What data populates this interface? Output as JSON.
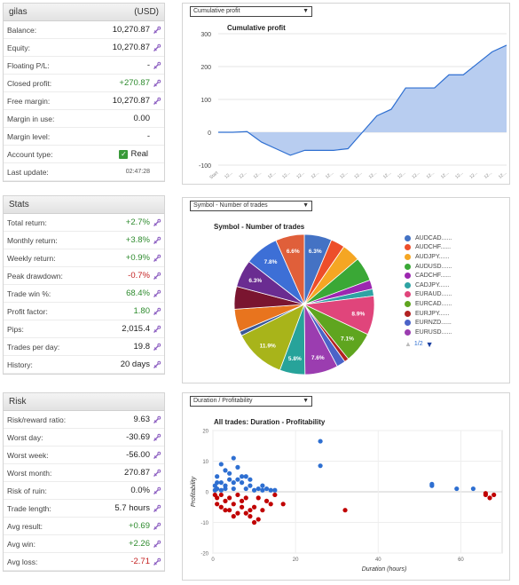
{
  "account": {
    "name": "gilas",
    "currency": "(USD)",
    "rows": [
      {
        "label": "Balance:",
        "value": "10,270.87",
        "tone": ""
      },
      {
        "label": "Equity:",
        "value": "10,270.87",
        "tone": ""
      },
      {
        "label": "Floating P/L:",
        "value": "-",
        "tone": ""
      },
      {
        "label": "Closed profit:",
        "value": "+270.87",
        "tone": "green"
      },
      {
        "label": "Free margin:",
        "value": "10,270.87",
        "tone": ""
      },
      {
        "label": "Margin in use:",
        "value": "0.00",
        "tone": ""
      },
      {
        "label": "Margin level:",
        "value": "-",
        "tone": ""
      },
      {
        "label": "Account type:",
        "value": "Real",
        "tone": ""
      },
      {
        "label": "Last update:",
        "value": "02:47:28",
        "tone": "small"
      }
    ]
  },
  "stats": {
    "title": "Stats",
    "rows": [
      {
        "label": "Total return:",
        "value": "+2.7%",
        "tone": "green"
      },
      {
        "label": "Monthly return:",
        "value": "+3.8%",
        "tone": "green"
      },
      {
        "label": "Weekly return:",
        "value": "+0.9%",
        "tone": "green"
      },
      {
        "label": "Peak drawdown:",
        "value": "-0.7%",
        "tone": "red"
      },
      {
        "label": "Trade win %:",
        "value": "68.4%",
        "tone": "green"
      },
      {
        "label": "Profit factor:",
        "value": "1.80",
        "tone": "green"
      },
      {
        "label": "Pips:",
        "value": "2,015.4",
        "tone": ""
      },
      {
        "label": "Trades per day:",
        "value": "19.8",
        "tone": ""
      },
      {
        "label": "History:",
        "value": "20 days",
        "tone": ""
      }
    ]
  },
  "risk": {
    "title": "Risk",
    "rows": [
      {
        "label": "Risk/reward ratio:",
        "value": "9.63",
        "tone": ""
      },
      {
        "label": "Worst day:",
        "value": "-30.69",
        "tone": ""
      },
      {
        "label": "Worst week:",
        "value": "-56.00",
        "tone": ""
      },
      {
        "label": "Worst month:",
        "value": "270.87",
        "tone": ""
      },
      {
        "label": "Risk of ruin:",
        "value": "0.0%",
        "tone": ""
      },
      {
        "label": "Trade length:",
        "value": "5.7 hours",
        "tone": ""
      },
      {
        "label": "Avg result:",
        "value": "+0.69",
        "tone": "green"
      },
      {
        "label": "Avg win:",
        "value": "+2.26",
        "tone": "green"
      },
      {
        "label": "Avg loss:",
        "value": "-2.71",
        "tone": "red"
      }
    ]
  },
  "charts": {
    "cumulative_select": "Cumulative profit",
    "symbol_select": "Symbol - Number of trades",
    "duration_select": "Duration / Profitability"
  },
  "legend_pager": "1/2",
  "colors": {
    "accent": "#2e6fd1",
    "positive": "#2e8b2e",
    "negative": "#c42020",
    "area_fill": "#b8cdf0",
    "line": "#2e6fd1"
  },
  "chart_data": [
    {
      "type": "area",
      "title": "Cumulative profit",
      "ylim": [
        -100,
        300
      ],
      "yticks": [
        300,
        200,
        100,
        0,
        -100
      ],
      "x_first_label": "Start",
      "x_tick_label": "12...",
      "values": [
        0,
        0,
        2,
        -30,
        -50,
        -70,
        -55,
        -55,
        -55,
        -50,
        0,
        50,
        70,
        135,
        135,
        135,
        175,
        175,
        210,
        245,
        265
      ]
    },
    {
      "type": "pie",
      "title": "Symbol - Number of trades",
      "legend": [
        "AUDCAD......",
        "AUDCHF......",
        "AUDJPY......",
        "AUDUSD......",
        "CADCHF......",
        "CADJPY......",
        "EURAUD......",
        "EURCAD......",
        "EURJPY......",
        "EURNZD......",
        "EURUSD......"
      ],
      "slices": [
        {
          "label": "6.3%",
          "value": 6.3,
          "color": "#4472c4"
        },
        {
          "label": "",
          "value": 3.2,
          "color": "#ed4e2a"
        },
        {
          "label": "",
          "value": 4.2,
          "color": "#f5a623"
        },
        {
          "label": "",
          "value": 5.5,
          "color": "#3aa836"
        },
        {
          "label": "",
          "value": 2.1,
          "color": "#9c27b0"
        },
        {
          "label": "",
          "value": 1.6,
          "color": "#2ea3a3"
        },
        {
          "label": "8.9%",
          "value": 8.9,
          "color": "#e0457b"
        },
        {
          "label": "7.1%",
          "value": 7.1,
          "color": "#5fa51f"
        },
        {
          "label": "",
          "value": 1.0,
          "color": "#b22222"
        },
        {
          "label": "",
          "value": 2.0,
          "color": "#4b63c8"
        },
        {
          "label": "7.6%",
          "value": 7.6,
          "color": "#9b3db0"
        },
        {
          "label": "5.8%",
          "value": 5.8,
          "color": "#27a39a"
        },
        {
          "label": "11.9%",
          "value": 11.9,
          "color": "#a8b41a"
        },
        {
          "label": "",
          "value": 1.0,
          "color": "#3b5998"
        },
        {
          "label": "",
          "value": 5.2,
          "color": "#e8741e"
        },
        {
          "label": "",
          "value": 5.2,
          "color": "#7a1530"
        },
        {
          "label": "6.3%",
          "value": 6.3,
          "color": "#6a2c91"
        },
        {
          "label": "7.8%",
          "value": 7.8,
          "color": "#3d6fd6"
        },
        {
          "label": "6.6%",
          "value": 6.6,
          "color": "#e05f3a"
        }
      ]
    },
    {
      "type": "scatter",
      "title": "All trades: Duration - Profitability",
      "xlabel": "Duration (hours)",
      "ylabel": "Profitability",
      "xlim": [
        0,
        70
      ],
      "ylim": [
        -20,
        20
      ],
      "xticks": [
        0,
        20,
        40,
        60
      ],
      "yticks": [
        20,
        10,
        0,
        -10,
        -20
      ],
      "series": [
        {
          "name": "",
          "color": "#2e6fd1",
          "points": [
            [
              26,
              16.5
            ],
            [
              26,
              8.5
            ],
            [
              5,
              11
            ],
            [
              2,
              9
            ],
            [
              3,
              7
            ],
            [
              1,
              5
            ],
            [
              4,
              6
            ],
            [
              6,
              4
            ],
            [
              2,
              3
            ],
            [
              0.5,
              2
            ],
            [
              3,
              2
            ],
            [
              7,
              3
            ],
            [
              9,
              2
            ],
            [
              11,
              1
            ],
            [
              13,
              1
            ],
            [
              14,
              0.5
            ],
            [
              12,
              0.5
            ],
            [
              8,
              1
            ],
            [
              5,
              1
            ],
            [
              1,
              1
            ],
            [
              2,
              0.5
            ],
            [
              10,
              0.5
            ],
            [
              53,
              2
            ],
            [
              53,
              2.5
            ],
            [
              59,
              1
            ],
            [
              63,
              1
            ],
            [
              6,
              8
            ],
            [
              4,
              4
            ],
            [
              7,
              5
            ],
            [
              3,
              1
            ],
            [
              1,
              3
            ],
            [
              9,
              4
            ],
            [
              12,
              2
            ],
            [
              15,
              0.5
            ],
            [
              0.5,
              0.5
            ],
            [
              5,
              3
            ],
            [
              8,
              5
            ]
          ]
        },
        {
          "name": "",
          "color": "#c00000",
          "points": [
            [
              32,
              -6
            ],
            [
              17,
              -4
            ],
            [
              9,
              -8
            ],
            [
              10,
              -10
            ],
            [
              4,
              -6
            ],
            [
              6,
              -7
            ],
            [
              2,
              -5
            ],
            [
              3,
              -3
            ],
            [
              1,
              -2
            ],
            [
              5,
              -4
            ],
            [
              7,
              -3
            ],
            [
              8,
              -2
            ],
            [
              10,
              -5
            ],
            [
              12,
              -6
            ],
            [
              11,
              -2
            ],
            [
              13,
              -3
            ],
            [
              15,
              -1
            ],
            [
              66,
              -1
            ],
            [
              67,
              -2
            ],
            [
              68,
              -1
            ],
            [
              66,
              -0.5
            ],
            [
              2,
              -1
            ],
            [
              4,
              -2
            ],
            [
              6,
              -1
            ],
            [
              9,
              -6
            ],
            [
              11,
              -9
            ],
            [
              5,
              -8
            ],
            [
              3,
              -6
            ],
            [
              7,
              -5
            ],
            [
              14,
              -4
            ],
            [
              1,
              -4
            ],
            [
              8,
              -7
            ],
            [
              0.5,
              -1
            ]
          ]
        }
      ]
    }
  ]
}
